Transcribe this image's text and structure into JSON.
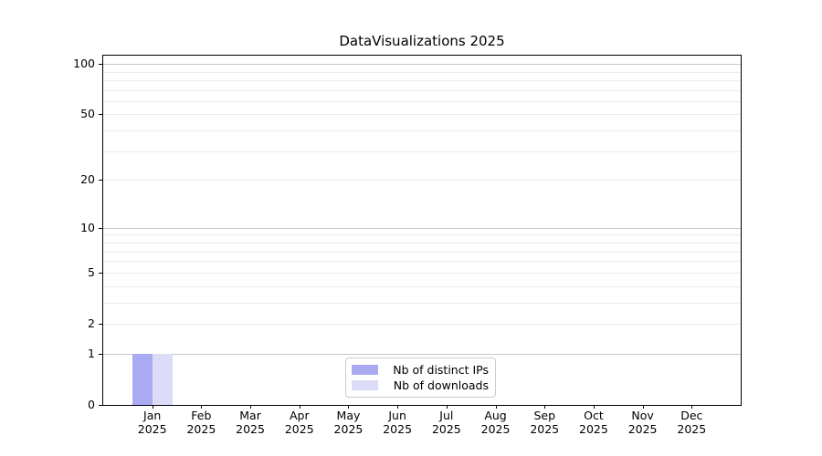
{
  "chart_data": {
    "type": "bar",
    "title": "DataVisualizations 2025",
    "x_categories": [
      "Jan",
      "Feb",
      "Mar",
      "Apr",
      "May",
      "Jun",
      "Jul",
      "Aug",
      "Sep",
      "Oct",
      "Nov",
      "Dec"
    ],
    "x_sublabel_year": "2025",
    "series": [
      {
        "name": "Nb of distinct IPs",
        "color": "#aaaaf2",
        "values": [
          1,
          0,
          0,
          0,
          0,
          0,
          0,
          0,
          0,
          0,
          0,
          0
        ]
      },
      {
        "name": "Nb of downloads",
        "color": "#dcdcf8",
        "values": [
          1,
          0,
          0,
          0,
          0,
          0,
          0,
          0,
          0,
          0,
          0,
          0
        ]
      }
    ],
    "y_scale": "log1p",
    "ylim": [
      0,
      112
    ],
    "y_major_ticks": [
      0,
      1,
      2,
      5,
      10,
      20,
      50,
      100
    ],
    "y_minor_ticks": [
      3,
      4,
      6,
      7,
      8,
      9,
      30,
      40,
      60,
      70,
      80,
      90
    ],
    "grid": true,
    "legend_position": "inside-bottom-center",
    "colors": {
      "major_grid": "#c8c8c8",
      "minor_grid": "#ececec",
      "axis": "#000000",
      "text": "#000000"
    }
  }
}
